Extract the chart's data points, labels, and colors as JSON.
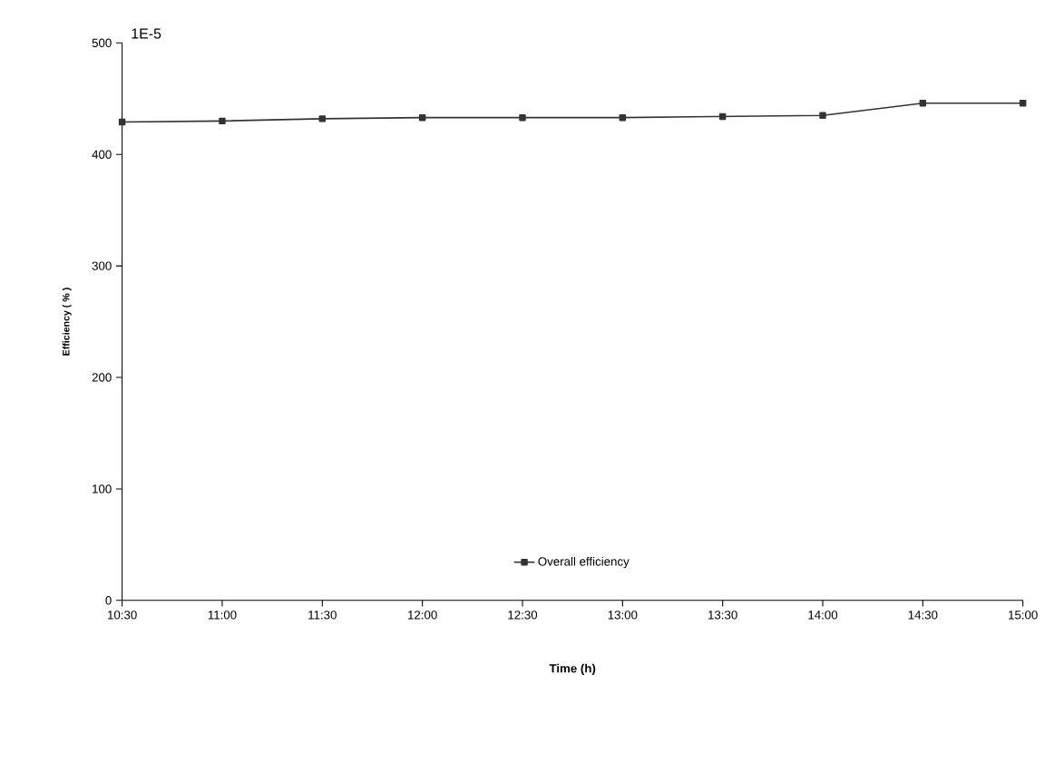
{
  "chart_data": {
    "type": "line",
    "xlabel": "Time  (h)",
    "ylabel": "Efficiency  ( % )",
    "annotations": [
      "1E-5"
    ],
    "x": [
      10.5,
      11,
      11.5,
      12,
      12.5,
      13,
      13.5,
      14,
      14.5,
      15
    ],
    "series": [
      {
        "name": "Overall efficiency",
        "color": "#333333",
        "values": [
          429,
          430,
          432,
          433,
          433,
          433,
          434,
          435,
          446,
          446
        ]
      }
    ],
    "xlim": [
      10.5,
      15
    ],
    "xticks": [
      {
        "value": 10.5,
        "label": "10:30"
      },
      {
        "value": 11,
        "label": "11:00"
      },
      {
        "value": 11.5,
        "label": "11:30"
      },
      {
        "value": 12,
        "label": "12:00"
      },
      {
        "value": 12.5,
        "label": "12:30"
      },
      {
        "value": 13,
        "label": "13:00"
      },
      {
        "value": 13.5,
        "label": "13:30"
      },
      {
        "value": 14,
        "label": "14:00"
      },
      {
        "value": 14.5,
        "label": "14:30"
      },
      {
        "value": 15,
        "label": "15:00"
      }
    ],
    "ylim": [
      0,
      500
    ],
    "yticks": [
      0,
      100,
      200,
      300,
      400,
      500
    ],
    "grid": false,
    "legend": "bottom",
    "marker": "square",
    "line_style": "solid"
  }
}
